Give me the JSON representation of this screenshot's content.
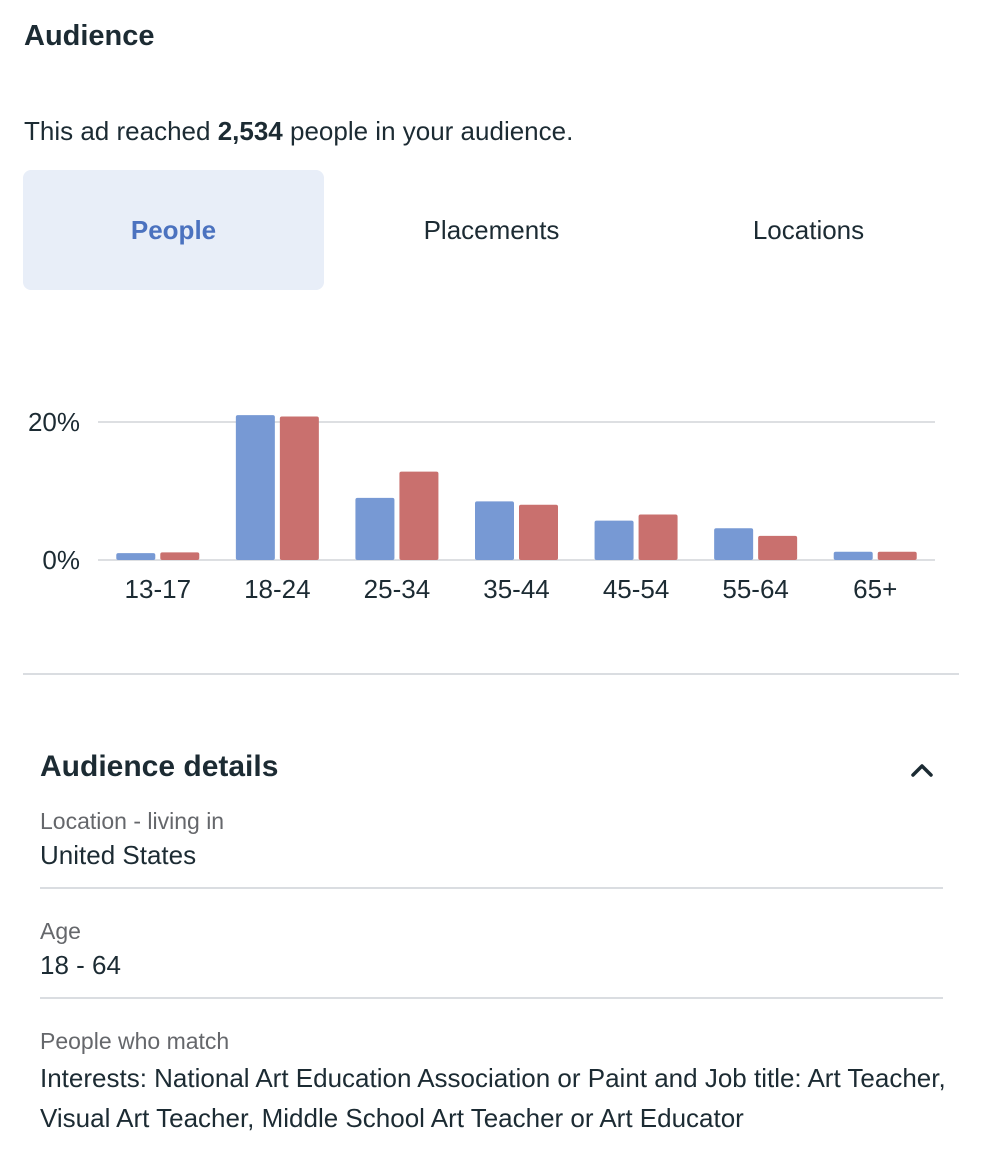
{
  "header": {
    "title": "Audience"
  },
  "reach": {
    "prefix": "This ad reached",
    "count": "2,534",
    "suffix": "people in your audience."
  },
  "tabs": [
    {
      "label": "People",
      "active": true
    },
    {
      "label": "Placements",
      "active": false
    },
    {
      "label": "Locations",
      "active": false
    }
  ],
  "chart_data": {
    "type": "bar",
    "categories": [
      "13-17",
      "18-24",
      "25-34",
      "35-44",
      "45-54",
      "55-64",
      "65+"
    ],
    "series": [
      {
        "values": [
          1,
          21,
          9,
          8.5,
          5.7,
          4.6,
          1.2
        ],
        "color": "#7799d4"
      },
      {
        "values": [
          1.1,
          20.8,
          12.8,
          8,
          6.6,
          3.5,
          1.2
        ],
        "color": "#c9706e"
      }
    ],
    "ylim": [
      0,
      20
    ],
    "yticks": [
      "0%",
      "20%"
    ],
    "grid": true,
    "legend": "none"
  },
  "details": {
    "title": "Audience details",
    "toggle_icon": "chevron-up-icon",
    "rows": [
      {
        "label": "Location - living in",
        "value": "United States"
      },
      {
        "label": "Age",
        "value": "18 - 64"
      },
      {
        "label": "People who match",
        "value": "Interests: National Art Education Association or Paint and Job title: Art Teacher, Visual Art Teacher, Middle School Art Teacher or Art Educator"
      }
    ]
  }
}
